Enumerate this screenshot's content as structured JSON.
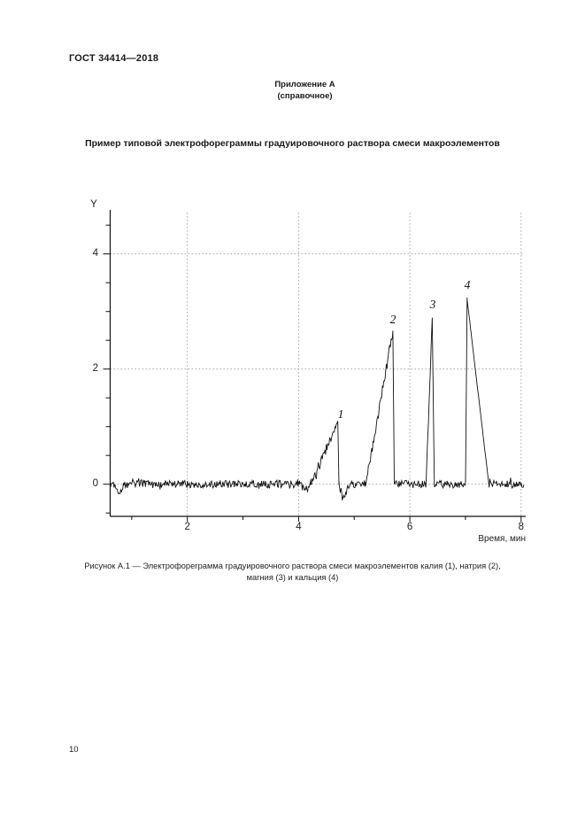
{
  "page": {
    "doc_code": "ГОСТ 34414—2018",
    "page_number": "10"
  },
  "annex": {
    "title": "Приложение А",
    "subtitle": "(справочное)"
  },
  "section_title": "Пример типовой электрофореграммы градуировочного раствора смеси макроэлементов",
  "figure_caption": {
    "line1": "Рисунок А.1 — Электрофореграмма градуировочного раствора смеси макроэлементов калия (1), натрия (2),",
    "line2": "магния (3) и кальция (4)"
  },
  "chart_data": {
    "type": "line",
    "title": "Электрофореграмма градуировочного раствора смеси макроэлементов",
    "xlabel": "Время, мин",
    "ylabel": "Y",
    "x_range": [
      0.61,
      8.06
    ],
    "y_range": [
      -0.56,
      4.72
    ],
    "x_major_ticks": [
      2,
      4,
      6,
      8
    ],
    "x_minor_ticks": [
      1,
      3,
      5,
      7
    ],
    "y_major_ticks": [
      0,
      2,
      4
    ],
    "y_minor_tick_step": 0.5,
    "grid": {
      "x_lines": [
        2,
        4,
        6,
        8
      ],
      "y_lines": [
        0,
        2,
        4
      ],
      "style": "dashed"
    },
    "baseline_value": 0,
    "baseline_noise_amplitude": 0.07,
    "line_color": "#111111",
    "grid_color": "#9a9a9a",
    "peaks": [
      {
        "label": "1",
        "analyte": "калий",
        "start_x": 4.22,
        "apex_x": 4.705,
        "end_x": 4.725,
        "height": 1.08
      },
      {
        "label": "2",
        "analyte": "натрий",
        "start_x": 5.21,
        "apex_x": 5.695,
        "end_x": 5.72,
        "height": 2.66
      },
      {
        "label": "3",
        "analyte": "магний",
        "start_x": 6.29,
        "apex_x": 6.402,
        "end_x": 6.44,
        "height": 2.9
      },
      {
        "label": "4",
        "analyte": "кальций",
        "start_x": 7.0,
        "apex_x": 7.03,
        "end_x": 7.42,
        "height": 3.21
      }
    ],
    "dips": [
      {
        "start_x": 0.7,
        "center_x": 0.77,
        "end_x": 0.86,
        "depth": -0.2
      },
      {
        "start_x": 4.02,
        "center_x": 4.12,
        "end_x": 4.22,
        "depth": -0.12
      },
      {
        "start_x": 4.73,
        "center_x": 4.79,
        "end_x": 4.92,
        "depth": -0.25
      }
    ]
  }
}
